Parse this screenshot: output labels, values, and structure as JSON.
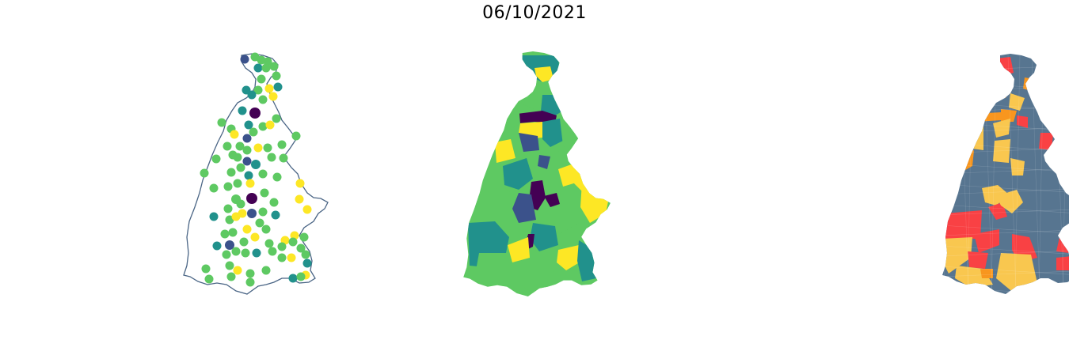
{
  "figure": {
    "title": "06/10/2021"
  },
  "colors": {
    "outline": "#4a6585",
    "viridis": [
      "#440154",
      "#3b528b",
      "#21918c",
      "#5ec962",
      "#fde725"
    ],
    "categorical": {
      "dominant": "#577590",
      "red": "#f94144",
      "orange": "#f8961e",
      "yellow": "#f9c74f"
    }
  },
  "panels": [
    {
      "id": "points",
      "kind": "proportional-points"
    },
    {
      "id": "choropleth",
      "kind": "continuous-choropleth"
    },
    {
      "id": "categorical",
      "kind": "categorical-choropleth"
    }
  ]
}
